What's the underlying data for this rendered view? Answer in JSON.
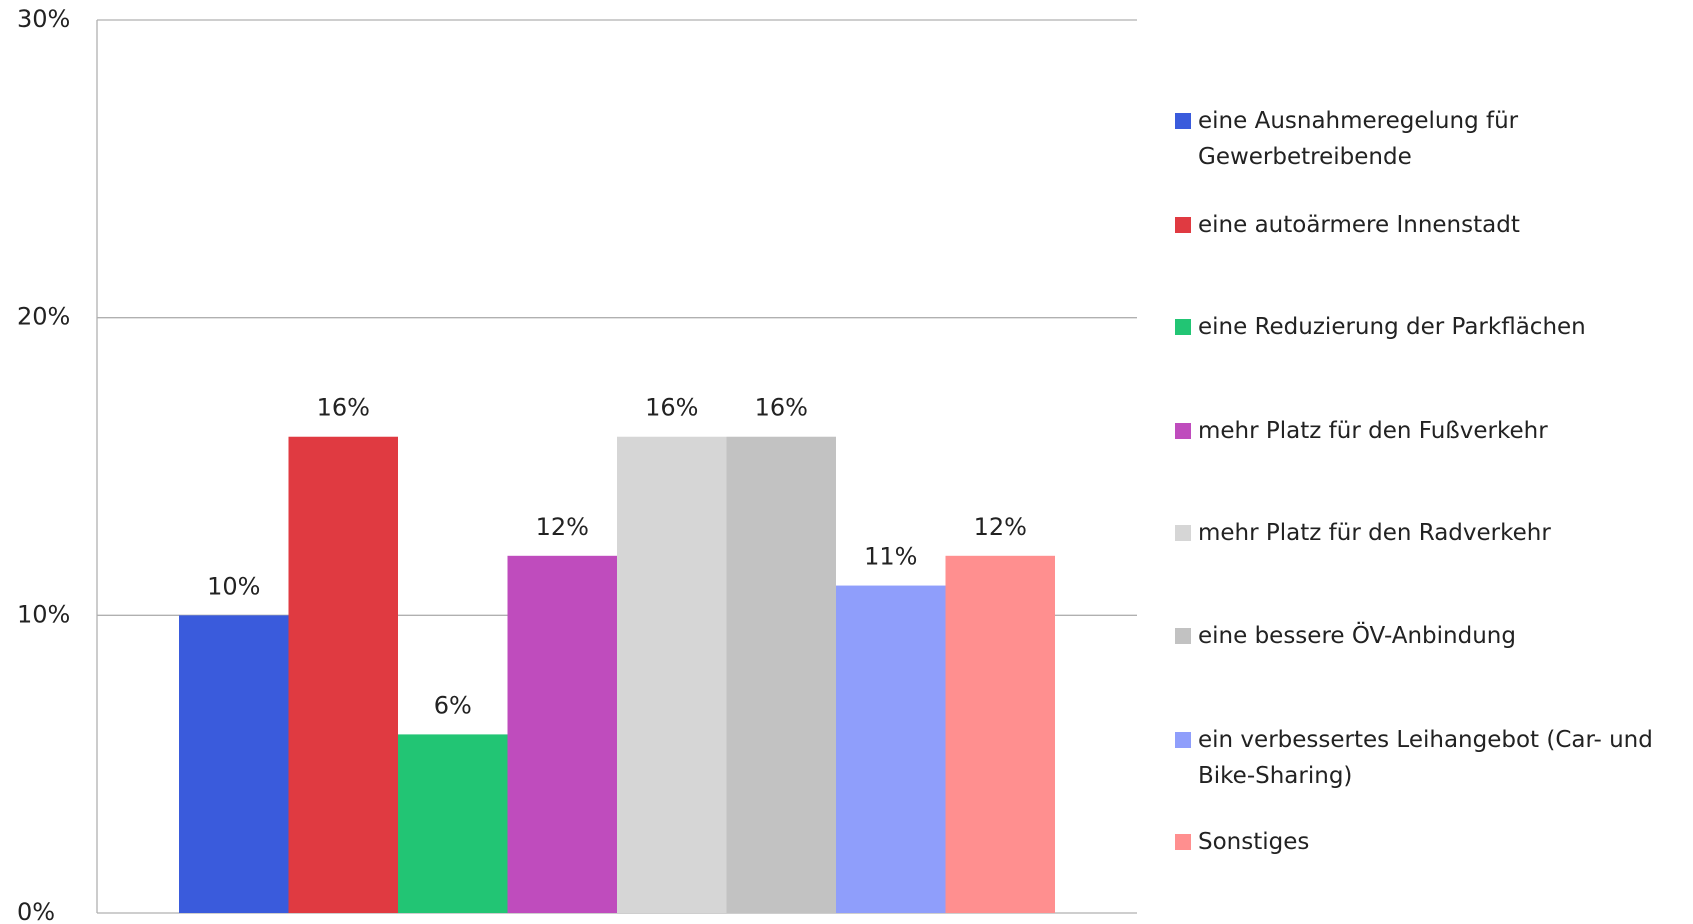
{
  "chart_data": {
    "type": "bar",
    "categories": [
      "eine Ausnahmeregelung für Gewerbetreibende",
      "eine autoärmere Innenstadt",
      "eine Reduzierung der Parkflächen",
      "mehr Platz für den Fußverkehr",
      "mehr Platz für den Radverkehr",
      "eine bessere ÖV-Anbindung",
      "ein verbessertes Leihangebot (Car- und Bike-Sharing)",
      "Sonstiges"
    ],
    "values": [
      10,
      16,
      6,
      12,
      16,
      16,
      11,
      12
    ],
    "value_labels": [
      "10%",
      "16%",
      "6%",
      "12%",
      "16%",
      "16%",
      "11%",
      "12%"
    ],
    "colors": [
      "#3a5bdc",
      "#e03a41",
      "#22c574",
      "#bf4cbd",
      "#d6d6d6",
      "#c2c2c2",
      "#8f9efb",
      "#ff8f8f"
    ],
    "ylim": [
      0,
      30
    ],
    "yticks": [
      {
        "value": 0,
        "label": "0%"
      },
      {
        "value": 10,
        "label": "10%"
      },
      {
        "value": 20,
        "label": "20%"
      },
      {
        "value": 30,
        "label": "30%"
      }
    ],
    "grid": true,
    "legend": "right"
  }
}
